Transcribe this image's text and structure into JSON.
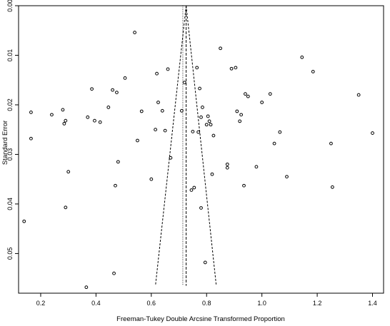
{
  "chart_data": {
    "type": "scatter",
    "title": "",
    "xlabel": "Freeman-Tukey Double Arcsine Transformed Proportion",
    "ylabel": "Standard Error",
    "xlim": [
      0.12,
      1.44
    ],
    "ylim": [
      0.0,
      0.058
    ],
    "y_reversed": true,
    "grid": false,
    "legend": "none",
    "x_ticks": [
      {
        "value": 0.2,
        "label": "0.2"
      },
      {
        "value": 0.4,
        "label": "0.4"
      },
      {
        "value": 0.6,
        "label": "0.6"
      },
      {
        "value": 0.8,
        "label": "0.8"
      },
      {
        "value": 1.0,
        "label": "1.0"
      },
      {
        "value": 1.2,
        "label": "1.2"
      },
      {
        "value": 1.4,
        "label": "1.4"
      }
    ],
    "y_ticks": [
      {
        "value": 0.0,
        "label": "0.00"
      },
      {
        "value": 0.01,
        "label": "0.01"
      },
      {
        "value": 0.02,
        "label": "0.02"
      },
      {
        "value": 0.03,
        "label": "0.03"
      },
      {
        "value": 0.04,
        "label": "0.04"
      },
      {
        "value": 0.05,
        "label": "0.05"
      }
    ],
    "pooled_estimate": 0.726,
    "random_estimate": 0.714,
    "funnel_bottom_se": 0.0565,
    "funnel_left_bottom": 0.615,
    "funnel_right_bottom": 0.835,
    "points": [
      [
        0.14,
        0.0435
      ],
      [
        0.165,
        0.0215
      ],
      [
        0.165,
        0.0268
      ],
      [
        0.24,
        0.022
      ],
      [
        0.28,
        0.021
      ],
      [
        0.285,
        0.0238
      ],
      [
        0.29,
        0.0232
      ],
      [
        0.29,
        0.0407
      ],
      [
        0.3,
        0.0335
      ],
      [
        0.365,
        0.0568
      ],
      [
        0.37,
        0.0225
      ],
      [
        0.385,
        0.0168
      ],
      [
        0.395,
        0.0232
      ],
      [
        0.415,
        0.0235
      ],
      [
        0.445,
        0.0205
      ],
      [
        0.46,
        0.017
      ],
      [
        0.465,
        0.054
      ],
      [
        0.47,
        0.0363
      ],
      [
        0.475,
        0.0175
      ],
      [
        0.48,
        0.0315
      ],
      [
        0.505,
        0.0146
      ],
      [
        0.54,
        0.0054
      ],
      [
        0.55,
        0.0272
      ],
      [
        0.565,
        0.0213
      ],
      [
        0.6,
        0.035
      ],
      [
        0.615,
        0.025
      ],
      [
        0.62,
        0.0137
      ],
      [
        0.625,
        0.0195
      ],
      [
        0.64,
        0.0212
      ],
      [
        0.65,
        0.0252
      ],
      [
        0.66,
        0.0128
      ],
      [
        0.67,
        0.0307
      ],
      [
        0.71,
        0.0212
      ],
      [
        0.72,
        0.0155
      ],
      [
        0.745,
        0.0372
      ],
      [
        0.75,
        0.0254
      ],
      [
        0.755,
        0.0367
      ],
      [
        0.765,
        0.0125
      ],
      [
        0.77,
        0.0255
      ],
      [
        0.775,
        0.0167
      ],
      [
        0.78,
        0.0408
      ],
      [
        0.78,
        0.0225
      ],
      [
        0.785,
        0.0205
      ],
      [
        0.795,
        0.0518
      ],
      [
        0.8,
        0.024
      ],
      [
        0.805,
        0.0223
      ],
      [
        0.81,
        0.0233
      ],
      [
        0.815,
        0.024
      ],
      [
        0.82,
        0.034
      ],
      [
        0.825,
        0.0262
      ],
      [
        0.85,
        0.0086
      ],
      [
        0.875,
        0.032
      ],
      [
        0.875,
        0.0327
      ],
      [
        0.89,
        0.0127
      ],
      [
        0.905,
        0.0125
      ],
      [
        0.91,
        0.0213
      ],
      [
        0.92,
        0.0233
      ],
      [
        0.925,
        0.022
      ],
      [
        0.935,
        0.0363
      ],
      [
        0.94,
        0.0178
      ],
      [
        0.95,
        0.0183
      ],
      [
        0.98,
        0.0325
      ],
      [
        1.0,
        0.0195
      ],
      [
        1.03,
        0.0178
      ],
      [
        1.045,
        0.0278
      ],
      [
        1.065,
        0.0255
      ],
      [
        1.09,
        0.0345
      ],
      [
        1.145,
        0.0104
      ],
      [
        1.185,
        0.0133
      ],
      [
        1.25,
        0.0278
      ],
      [
        1.255,
        0.0366
      ],
      [
        1.35,
        0.018
      ],
      [
        1.4,
        0.0257
      ]
    ]
  }
}
